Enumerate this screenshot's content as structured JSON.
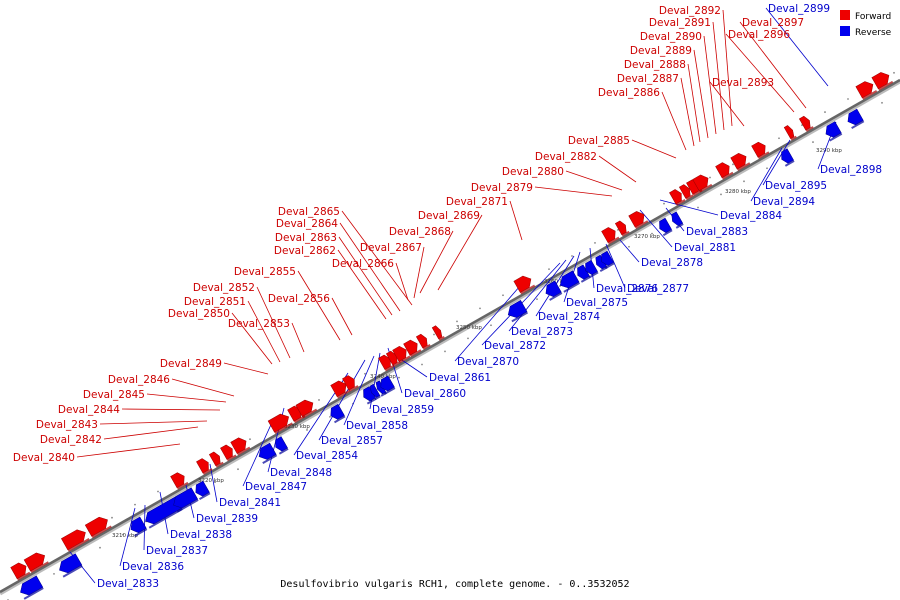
{
  "legend": [
    {
      "label": "Forward",
      "color": "#ee0000"
    },
    {
      "label": "Reverse",
      "color": "#0000ee"
    }
  ],
  "caption": "Desulfovibrio vulgaris RCH1, complete genome. - 0..3532052",
  "axis_ticks": [
    "3210 kbp",
    "3220 kbp",
    "3230 kbp",
    "3240 kbp",
    "3250 kbp",
    "3260 kbp",
    "3270 kbp",
    "3280 kbp",
    "3290 kbp"
  ],
  "genes": [
    {
      "name": "Deval_2833",
      "strand": "reverse"
    },
    {
      "name": "Deval_2836",
      "strand": "reverse"
    },
    {
      "name": "Deval_2837",
      "strand": "reverse"
    },
    {
      "name": "Deval_2838",
      "strand": "reverse"
    },
    {
      "name": "Deval_2839",
      "strand": "reverse"
    },
    {
      "name": "Deval_2840",
      "strand": "forward"
    },
    {
      "name": "Deval_2841",
      "strand": "reverse"
    },
    {
      "name": "Deval_2842",
      "strand": "forward"
    },
    {
      "name": "Deval_2843",
      "strand": "forward"
    },
    {
      "name": "Deval_2844",
      "strand": "forward"
    },
    {
      "name": "Deval_2845",
      "strand": "forward"
    },
    {
      "name": "Deval_2846",
      "strand": "forward"
    },
    {
      "name": "Deval_2847",
      "strand": "reverse"
    },
    {
      "name": "Deval_2848",
      "strand": "reverse"
    },
    {
      "name": "Deval_2849",
      "strand": "forward"
    },
    {
      "name": "Deval_2850",
      "strand": "forward"
    },
    {
      "name": "Deval_2851",
      "strand": "forward"
    },
    {
      "name": "Deval_2852",
      "strand": "forward"
    },
    {
      "name": "Deval_2853",
      "strand": "forward"
    },
    {
      "name": "Deval_2854",
      "strand": "reverse"
    },
    {
      "name": "Deval_2855",
      "strand": "forward"
    },
    {
      "name": "Deval_2856",
      "strand": "forward"
    },
    {
      "name": "Deval_2857",
      "strand": "reverse"
    },
    {
      "name": "Deval_2858",
      "strand": "reverse"
    },
    {
      "name": "Deval_2859",
      "strand": "reverse"
    },
    {
      "name": "Deval_2860",
      "strand": "reverse"
    },
    {
      "name": "Deval_2861",
      "strand": "reverse"
    },
    {
      "name": "Deval_2862",
      "strand": "forward"
    },
    {
      "name": "Deval_2863",
      "strand": "forward"
    },
    {
      "name": "Deval_2864",
      "strand": "forward"
    },
    {
      "name": "Deval_2865",
      "strand": "forward"
    },
    {
      "name": "Deval_2866",
      "strand": "forward"
    },
    {
      "name": "Deval_2867",
      "strand": "forward"
    },
    {
      "name": "Deval_2868",
      "strand": "forward"
    },
    {
      "name": "Deval_2869",
      "strand": "forward"
    },
    {
      "name": "Deval_2870",
      "strand": "reverse"
    },
    {
      "name": "Deval_2871",
      "strand": "forward"
    },
    {
      "name": "Deval_2872",
      "strand": "reverse"
    },
    {
      "name": "Deval_2873",
      "strand": "reverse"
    },
    {
      "name": "Deval_2874",
      "strand": "reverse"
    },
    {
      "name": "Deval_2875",
      "strand": "reverse"
    },
    {
      "name": "Deval_2876",
      "strand": "reverse"
    },
    {
      "name": "Deval_2877",
      "strand": "reverse"
    },
    {
      "name": "Deval_2878",
      "strand": "reverse"
    },
    {
      "name": "Deval_2879",
      "strand": "forward"
    },
    {
      "name": "Deval_2880",
      "strand": "forward"
    },
    {
      "name": "Deval_2881",
      "strand": "reverse"
    },
    {
      "name": "Deval_2882",
      "strand": "forward"
    },
    {
      "name": "Deval_2883",
      "strand": "reverse"
    },
    {
      "name": "Deval_2884",
      "strand": "reverse"
    },
    {
      "name": "Deval_2885",
      "strand": "forward"
    },
    {
      "name": "Deval_2886",
      "strand": "forward"
    },
    {
      "name": "Deval_2887",
      "strand": "forward"
    },
    {
      "name": "Deval_2888",
      "strand": "forward"
    },
    {
      "name": "Deval_2889",
      "strand": "forward"
    },
    {
      "name": "Deval_2890",
      "strand": "forward"
    },
    {
      "name": "Deval_2891",
      "strand": "forward"
    },
    {
      "name": "Deval_2892",
      "strand": "forward"
    },
    {
      "name": "Deval_2893",
      "strand": "forward"
    },
    {
      "name": "Deval_2894",
      "strand": "reverse"
    },
    {
      "name": "Deval_2895",
      "strand": "reverse"
    },
    {
      "name": "Deval_2896",
      "strand": "forward"
    },
    {
      "name": "Deval_2897",
      "strand": "forward"
    },
    {
      "name": "Deval_2898",
      "strand": "reverse"
    },
    {
      "name": "Deval_2899",
      "strand": "reverse"
    }
  ]
}
